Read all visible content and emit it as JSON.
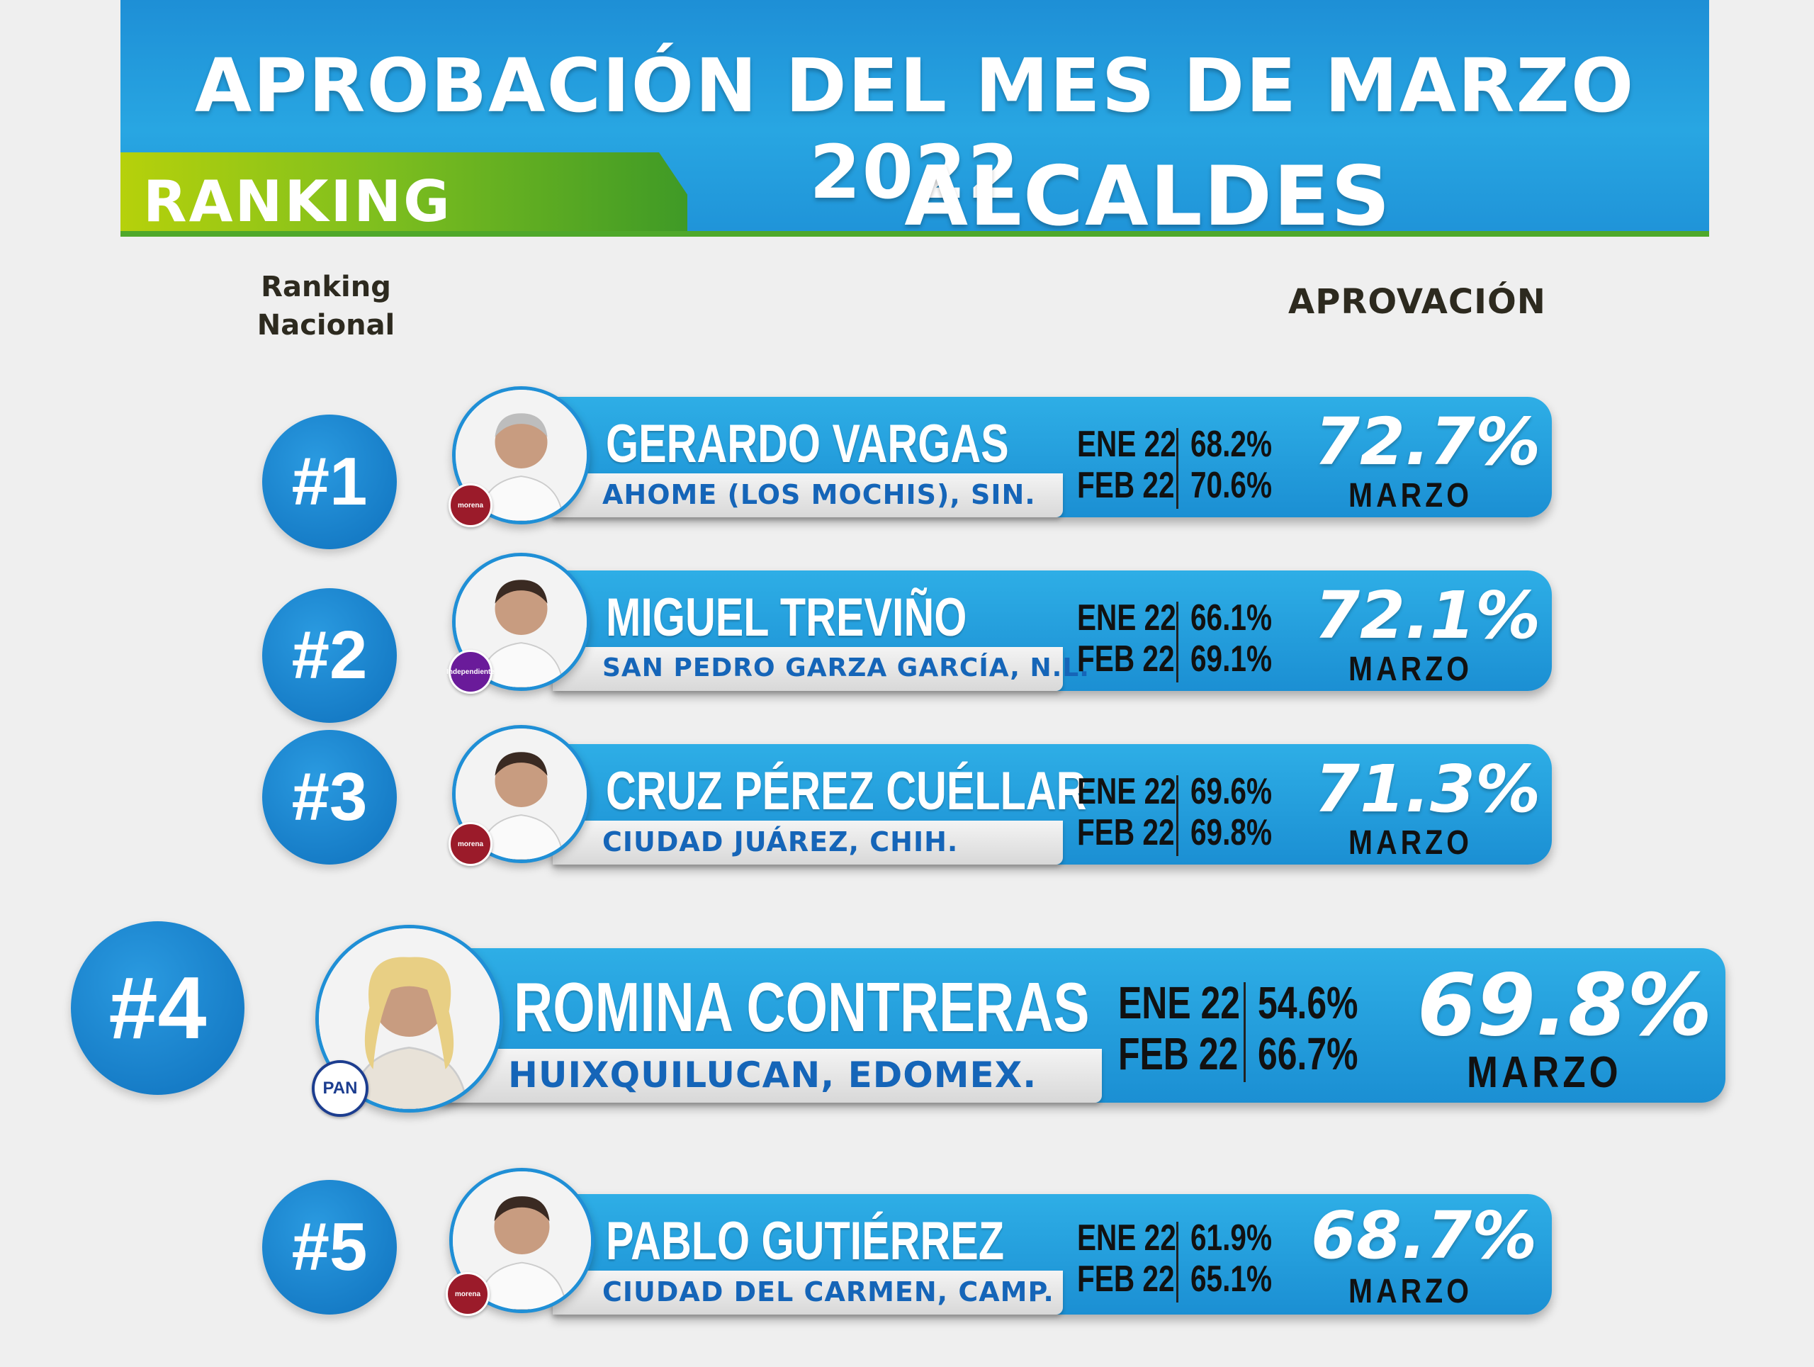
{
  "header": {
    "title": "APROBACIÓN DEL MES DE MARZO 2022",
    "tab_label": "RANKING",
    "subtitle": "ALCALDES"
  },
  "columns": {
    "ranking_line1": "Ranking",
    "ranking_line2": "Nacional",
    "approval": "APROVACIÓN"
  },
  "colors": {
    "banner_blue": "#1f93d8",
    "bar_blue": "#2eaee6",
    "rank_circle": "#1479c4",
    "city_text": "#1565b8",
    "tab_green": "#7fbf1e"
  },
  "rows": [
    {
      "rank": "#1",
      "name": "GERARDO VARGAS",
      "city": "AHOME (LOS MOCHIS), SIN.",
      "party": "morena",
      "party_color": "#9b1b2a",
      "m1_label": "ENE 22",
      "m1_value": "68.2%",
      "m2_label": "FEB 22",
      "m2_value": "70.6%",
      "march_value": "72.7%",
      "march_label": "MARZO"
    },
    {
      "rank": "#2",
      "name": "MIGUEL TREVIÑO",
      "city": "SAN PEDRO GARZA GARCÍA, N.L.",
      "party": "Independiente",
      "party_color": "#6a1b9a",
      "m1_label": "ENE 22",
      "m1_value": "66.1%",
      "m2_label": "FEB 22",
      "m2_value": "69.1%",
      "march_value": "72.1%",
      "march_label": "MARZO"
    },
    {
      "rank": "#3",
      "name": "CRUZ PÉREZ CUÉLLAR",
      "city": "CIUDAD JUÁREZ, CHIH.",
      "party": "morena",
      "party_color": "#9b1b2a",
      "m1_label": "ENE 22",
      "m1_value": "69.6%",
      "m2_label": "FEB 22",
      "m2_value": "69.8%",
      "march_value": "71.3%",
      "march_label": "MARZO"
    },
    {
      "rank": "#4",
      "name": "ROMINA CONTRERAS",
      "city": "HUIXQUILUCAN, EDOMEX.",
      "party": "PAN",
      "party_color": "#1c3d8f",
      "m1_label": "ENE 22",
      "m1_value": "54.6%",
      "m2_label": "FEB 22",
      "m2_value": "66.7%",
      "march_value": "69.8%",
      "march_label": "MARZO"
    },
    {
      "rank": "#5",
      "name": "PABLO GUTIÉRREZ",
      "city": "CIUDAD DEL CARMEN, CAMP.",
      "party": "morena",
      "party_color": "#9b1b2a",
      "m1_label": "ENE 22",
      "m1_value": "61.9%",
      "m2_label": "FEB 22",
      "m2_value": "65.1%",
      "march_value": "68.7%",
      "march_label": "MARZO"
    }
  ]
}
